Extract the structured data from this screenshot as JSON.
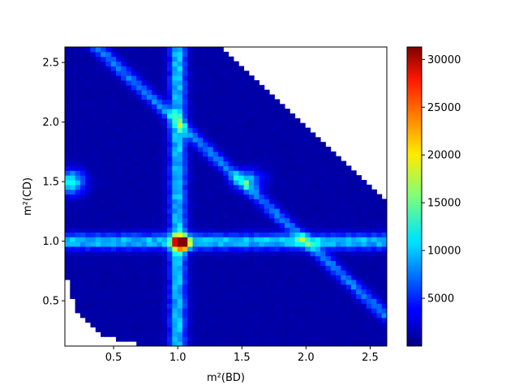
{
  "chart_data": {
    "type": "heatmap",
    "title": "",
    "xlabel": "m²(BD)",
    "ylabel": "m²(CD)",
    "xlim": [
      0.12,
      2.63
    ],
    "ylim": [
      0.12,
      2.63
    ],
    "bins": 63,
    "x_ticks": [
      {
        "value": 0.5,
        "label": "0.5"
      },
      {
        "value": 1.0,
        "label": "1.0"
      },
      {
        "value": 1.5,
        "label": "1.5"
      },
      {
        "value": 2.0,
        "label": "2.0"
      },
      {
        "value": 2.5,
        "label": "2.5"
      }
    ],
    "y_ticks": [
      {
        "value": 0.5,
        "label": "0.5"
      },
      {
        "value": 1.0,
        "label": "1.0"
      },
      {
        "value": 1.5,
        "label": "1.5"
      },
      {
        "value": 2.0,
        "label": "2.0"
      },
      {
        "value": 2.5,
        "label": "2.5"
      }
    ],
    "colormap": "jet",
    "color_range": [
      0,
      31300
    ],
    "colorbar_ticks": [
      {
        "value": 5000,
        "label": "5000"
      },
      {
        "value": 10000,
        "label": "10000"
      },
      {
        "value": 15000,
        "label": "15000"
      },
      {
        "value": 20000,
        "label": "20000"
      },
      {
        "value": 25000,
        "label": "25000"
      },
      {
        "value": 30000,
        "label": "30000"
      }
    ],
    "features": {
      "background_level": 1200,
      "vertical_band": {
        "x": 1.0,
        "width": 0.045,
        "peak": 9000
      },
      "horizontal_band": {
        "y": 1.0,
        "width": 0.045,
        "peak": 9000
      },
      "diagonal_band": {
        "sum": 3.0,
        "width": 0.05,
        "peak": 6500
      },
      "hotspot": {
        "x": 1.03,
        "y": 0.99,
        "peak": 31000
      },
      "side_hotspot": {
        "x": 0.17,
        "y": 1.5,
        "peak": 11000
      },
      "upper_hotspot": {
        "x": 1.55,
        "y": 1.52,
        "peak": 7500
      }
    }
  }
}
